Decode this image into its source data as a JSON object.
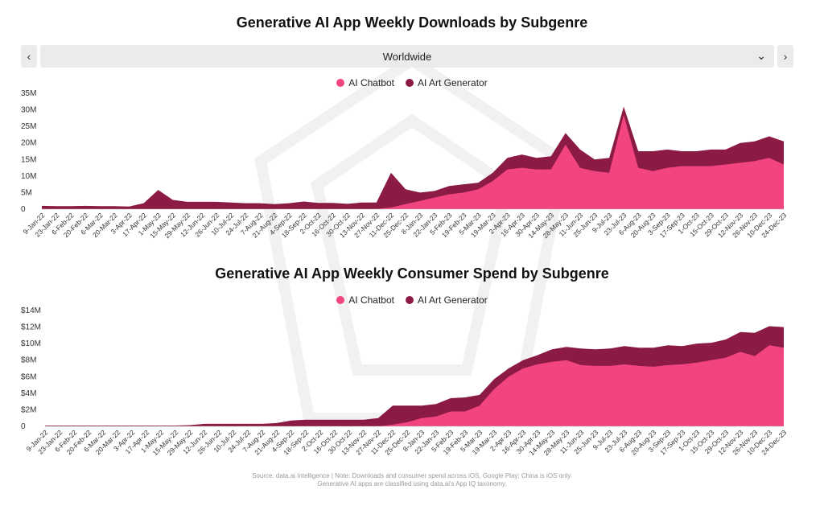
{
  "header": {
    "region": "Worldwide"
  },
  "colors": {
    "chatbot": "#f2457f",
    "art": "#8b1a45"
  },
  "icons": {
    "prev": "chevron-left-icon",
    "next": "chevron-right-icon",
    "dropdown": "chevron-down-icon"
  },
  "footer": {
    "line1": "Source: data.ai Intelligence | Note: Downloads and consumer spend across iOS, Google Play; China is iOS only.",
    "line2": "Generative AI apps are classified using data.ai's App IQ taxonomy."
  },
  "chart_data": [
    {
      "type": "area",
      "stacked": true,
      "title": "Generative AI App Weekly Downloads by Subgenre",
      "ylabel": "",
      "xlabel": "",
      "ylim": [
        0,
        35000000
      ],
      "yticks": [
        "0",
        "5M",
        "10M",
        "15M",
        "20M",
        "25M",
        "30M",
        "35M"
      ],
      "legend": "top-center",
      "grid": false,
      "x": [
        "9-Jan-22",
        "23-Jan-22",
        "6-Feb-22",
        "20-Feb-22",
        "6-Mar-22",
        "20-Mar-22",
        "3-Apr-22",
        "17-Apr-22",
        "1-May-22",
        "15-May-22",
        "29-May-22",
        "12-Jun-22",
        "26-Jun-22",
        "10-Jul-22",
        "24-Jul-22",
        "7-Aug-22",
        "21-Aug-22",
        "4-Sep-22",
        "18-Sep-22",
        "2-Oct-22",
        "16-Oct-22",
        "30-Oct-22",
        "13-Nov-22",
        "27-Nov-22",
        "11-Dec-22",
        "25-Dec-22",
        "8-Jan-23",
        "22-Jan-23",
        "5-Feb-23",
        "19-Feb-23",
        "5-Mar-23",
        "19-Mar-23",
        "2-Apr-23",
        "16-Apr-23",
        "30-Apr-23",
        "14-May-23",
        "28-May-23",
        "11-Jun-23",
        "25-Jun-23",
        "9-Jul-23",
        "23-Jul-23",
        "6-Aug-23",
        "20-Aug-23",
        "3-Sep-23",
        "17-Sep-23",
        "1-Oct-23",
        "15-Oct-23",
        "29-Oct-23",
        "12-Nov-23",
        "26-Nov-23",
        "10-Dec-23",
        "24-Dec-23"
      ],
      "series": [
        {
          "name": "AI Chatbot",
          "values": [
            0,
            0,
            0,
            0,
            0,
            0,
            0,
            0,
            0,
            0,
            0,
            0,
            0,
            0,
            0,
            0,
            0,
            0,
            0,
            0,
            0,
            0,
            0,
            0,
            0.5,
            1.5,
            2.5,
            3.5,
            4.5,
            5.0,
            6.0,
            8.5,
            12.0,
            12.5,
            12.0,
            12.0,
            19.5,
            12.5,
            11.5,
            11.0,
            28.5,
            12.5,
            11.5,
            12.5,
            13.0,
            13.0,
            13.0,
            13.5,
            14.0,
            14.5,
            15.5,
            13.5
          ]
        },
        {
          "name": "AI Art Generator",
          "values": [
            1.0,
            0.9,
            0.9,
            1.0,
            0.9,
            0.9,
            0.8,
            1.8,
            5.8,
            2.8,
            2.2,
            2.2,
            2.2,
            2.0,
            1.8,
            1.8,
            1.5,
            1.8,
            2.3,
            1.9,
            1.9,
            1.6,
            2.0,
            2.0,
            10.5,
            4.5,
            2.5,
            2.0,
            2.5,
            2.5,
            2.0,
            2.5,
            3.5,
            4.0,
            3.5,
            4.0,
            3.5,
            5.5,
            3.5,
            4.5,
            2.5,
            5.0,
            6.0,
            5.5,
            4.5,
            4.5,
            5.0,
            4.5,
            6.0,
            6.0,
            6.5,
            7.0
          ]
        }
      ]
    },
    {
      "type": "area",
      "stacked": true,
      "title": "Generative AI App Weekly Consumer Spend by Subgenre",
      "ylabel": "",
      "xlabel": "",
      "ylim": [
        0,
        14000000
      ],
      "yticks": [
        "0",
        "$2M",
        "$4M",
        "$6M",
        "$8M",
        "$10M",
        "$12M",
        "$14M"
      ],
      "legend": "top-center",
      "grid": false,
      "x": [
        "9-Jan-22",
        "23-Jan-22",
        "6-Feb-22",
        "20-Feb-22",
        "6-Mar-22",
        "20-Mar-22",
        "3-Apr-22",
        "17-Apr-22",
        "1-May-22",
        "15-May-22",
        "29-May-22",
        "12-Jun-22",
        "26-Jun-22",
        "10-Jul-22",
        "24-Jul-22",
        "7-Aug-22",
        "21-Aug-22",
        "4-Sep-22",
        "18-Sep-22",
        "2-Oct-22",
        "16-Oct-22",
        "30-Oct-22",
        "13-Nov-22",
        "27-Nov-22",
        "11-Dec-22",
        "25-Dec-22",
        "8-Jan-23",
        "22-Jan-23",
        "5-Feb-23",
        "19-Feb-23",
        "5-Mar-23",
        "19-Mar-23",
        "2-Apr-23",
        "16-Apr-23",
        "30-Apr-23",
        "14-May-23",
        "28-May-23",
        "11-Jun-23",
        "25-Jun-23",
        "9-Jul-23",
        "23-Jul-23",
        "6-Aug-23",
        "20-Aug-23",
        "3-Sep-23",
        "17-Sep-23",
        "1-Oct-23",
        "15-Oct-23",
        "29-Oct-23",
        "12-Nov-23",
        "26-Nov-23",
        "10-Dec-23",
        "24-Dec-23"
      ],
      "series": [
        {
          "name": "AI Chatbot",
          "values": [
            0,
            0,
            0,
            0,
            0,
            0,
            0,
            0,
            0,
            0,
            0,
            0,
            0,
            0,
            0,
            0,
            0,
            0,
            0,
            0,
            0,
            0,
            0,
            0,
            0.2,
            0.5,
            1.0,
            1.2,
            1.8,
            1.8,
            2.5,
            4.5,
            6.0,
            7.0,
            7.5,
            7.8,
            8.0,
            7.4,
            7.3,
            7.3,
            7.5,
            7.3,
            7.2,
            7.4,
            7.5,
            7.7,
            8.0,
            8.3,
            9.0,
            8.5,
            9.8,
            9.5
          ]
        },
        {
          "name": "AI Art Generator",
          "values": [
            0.1,
            0.1,
            0.1,
            0.1,
            0.1,
            0.1,
            0.1,
            0.1,
            0.1,
            0.1,
            0.15,
            0.3,
            0.3,
            0.3,
            0.3,
            0.3,
            0.4,
            0.7,
            0.8,
            0.8,
            0.8,
            0.8,
            0.8,
            1.0,
            2.3,
            2.0,
            1.5,
            1.5,
            1.6,
            1.7,
            1.3,
            1.2,
            1.0,
            1.0,
            1.1,
            1.5,
            1.6,
            2.0,
            2.0,
            2.1,
            2.2,
            2.2,
            2.3,
            2.4,
            2.2,
            2.3,
            2.1,
            2.2,
            2.4,
            2.8,
            2.3,
            2.5
          ]
        }
      ]
    }
  ]
}
